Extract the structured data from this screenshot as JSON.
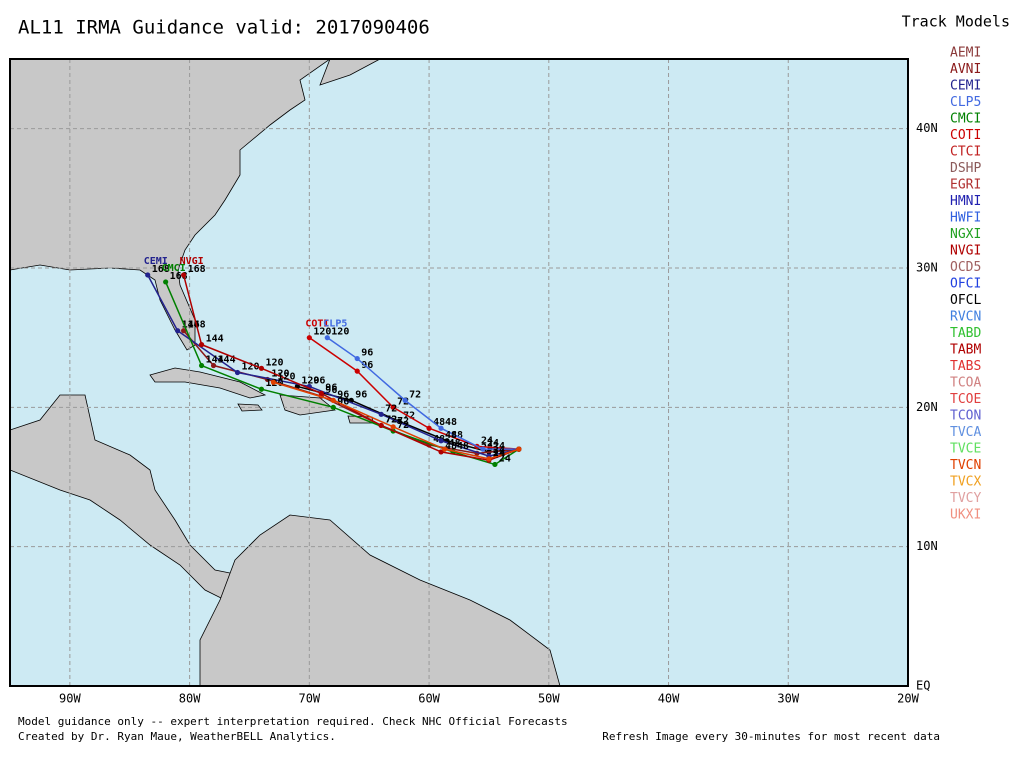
{
  "header": {
    "title": "AL11 IRMA Guidance valid: 2017090406"
  },
  "legend": {
    "title": "Track Models",
    "items": [
      {
        "name": "AEMI",
        "color": "#8b3a3a"
      },
      {
        "name": "AVNI",
        "color": "#8b1a1a"
      },
      {
        "name": "CEMI",
        "color": "#23238e"
      },
      {
        "name": "CLP5",
        "color": "#4169e1"
      },
      {
        "name": "CMCI",
        "color": "#008000"
      },
      {
        "name": "COTI",
        "color": "#cc0000"
      },
      {
        "name": "CTCI",
        "color": "#c02020"
      },
      {
        "name": "DSHP",
        "color": "#8b5a5a"
      },
      {
        "name": "EGRI",
        "color": "#b03030"
      },
      {
        "name": "HMNI",
        "color": "#2020b0"
      },
      {
        "name": "HWFI",
        "color": "#3060e0"
      },
      {
        "name": "NGXI",
        "color": "#20a020"
      },
      {
        "name": "NVGI",
        "color": "#b00000"
      },
      {
        "name": "OCD5",
        "color": "#a06060"
      },
      {
        "name": "OFCI",
        "color": "#2040e0"
      },
      {
        "name": "OFCL",
        "color": "#000000"
      },
      {
        "name": "RVCN",
        "color": "#4080e0"
      },
      {
        "name": "TABD",
        "color": "#30c030"
      },
      {
        "name": "TABM",
        "color": "#b00000"
      },
      {
        "name": "TABS",
        "color": "#e03030"
      },
      {
        "name": "TCOA",
        "color": "#d08080"
      },
      {
        "name": "TCOE",
        "color": "#e04040"
      },
      {
        "name": "TCON",
        "color": "#6060d0"
      },
      {
        "name": "TVCA",
        "color": "#6090e0"
      },
      {
        "name": "TVCE",
        "color": "#60e060"
      },
      {
        "name": "TVCN",
        "color": "#e04000"
      },
      {
        "name": "TVCX",
        "color": "#f0a020"
      },
      {
        "name": "TVCY",
        "color": "#e0a0a0"
      },
      {
        "name": "UKXI",
        "color": "#f09080"
      }
    ]
  },
  "map": {
    "lon_range": [
      -95,
      -20
    ],
    "lat_range": [
      0,
      45
    ],
    "lon_ticks": [
      {
        "value": -90,
        "label": "90W"
      },
      {
        "value": -80,
        "label": "80W"
      },
      {
        "value": -70,
        "label": "70W"
      },
      {
        "value": -60,
        "label": "60W"
      },
      {
        "value": -50,
        "label": "50W"
      },
      {
        "value": -40,
        "label": "40W"
      },
      {
        "value": -30,
        "label": "30W"
      },
      {
        "value": -20,
        "label": "20W"
      }
    ],
    "lat_ticks": [
      {
        "value": 0,
        "label": "EQ"
      },
      {
        "value": 10,
        "label": "10N"
      },
      {
        "value": 20,
        "label": "20N"
      },
      {
        "value": 30,
        "label": "30N"
      },
      {
        "value": 40,
        "label": "40N"
      }
    ],
    "tracks": [
      {
        "model": "OFCL",
        "color": "#000000",
        "points": [
          {
            "lon": -52.5,
            "lat": 17
          },
          {
            "lon": -55,
            "lat": 16.8,
            "label": "24"
          },
          {
            "lon": -58.5,
            "lat": 17.6,
            "label": "48"
          },
          {
            "lon": -62.5,
            "lat": 19,
            "label": "72"
          },
          {
            "lon": -66.5,
            "lat": 20.5,
            "label": "96"
          },
          {
            "lon": -71,
            "lat": 21.5,
            "label": "120"
          }
        ]
      },
      {
        "model": "AVNI",
        "color": "#8b1a1a",
        "points": [
          {
            "lon": -52.5,
            "lat": 17
          },
          {
            "lon": -56,
            "lat": 16.7,
            "label": "24"
          },
          {
            "lon": -60,
            "lat": 17.3,
            "label": "48"
          },
          {
            "lon": -64,
            "lat": 18.7,
            "label": "72"
          },
          {
            "lon": -69,
            "lat": 20.8,
            "label": "96"
          },
          {
            "lon": -73.5,
            "lat": 22,
            "label": "120"
          },
          {
            "lon": -78,
            "lat": 23,
            "label": "144"
          },
          {
            "lon": -80.5,
            "lat": 25.5,
            "label": "168"
          }
        ]
      },
      {
        "model": "COTI",
        "color": "#cc0000",
        "end_label": "COTI",
        "points": [
          {
            "lon": -52.5,
            "lat": 17
          },
          {
            "lon": -56,
            "lat": 17.2,
            "label": "24"
          },
          {
            "lon": -60,
            "lat": 18.5,
            "label": "48"
          },
          {
            "lon": -63,
            "lat": 20,
            "label": "72"
          },
          {
            "lon": -66,
            "lat": 22.6,
            "label": "96"
          },
          {
            "lon": -70,
            "lat": 25,
            "label": "120"
          }
        ]
      },
      {
        "model": "CLP5",
        "color": "#4169e1",
        "end_label": "CLP5",
        "points": [
          {
            "lon": -52.5,
            "lat": 17
          },
          {
            "lon": -55.5,
            "lat": 17,
            "label": "24"
          },
          {
            "lon": -59,
            "lat": 18.5,
            "label": "48"
          },
          {
            "lon": -62,
            "lat": 20.5,
            "label": "72"
          },
          {
            "lon": -66,
            "lat": 23.5,
            "label": "96"
          },
          {
            "lon": -68.5,
            "lat": 25,
            "label": "120"
          }
        ]
      },
      {
        "model": "CEMI",
        "color": "#23238e",
        "end_label": "CEMI",
        "points": [
          {
            "lon": -52.5,
            "lat": 17
          },
          {
            "lon": -55,
            "lat": 16.5,
            "label": "24"
          },
          {
            "lon": -59,
            "lat": 17.6,
            "label": "48"
          },
          {
            "lon": -64,
            "lat": 19.5,
            "label": "72"
          },
          {
            "lon": -70,
            "lat": 21.5,
            "label": "96"
          },
          {
            "lon": -76,
            "lat": 22.5,
            "label": "120"
          },
          {
            "lon": -81,
            "lat": 25.5,
            "label": "144"
          },
          {
            "lon": -83.5,
            "lat": 29.5,
            "label": "168"
          }
        ]
      },
      {
        "model": "CMCI",
        "color": "#008000",
        "end_label": "CMCI",
        "points": [
          {
            "lon": -52.5,
            "lat": 17
          },
          {
            "lon": -54.5,
            "lat": 15.9,
            "label": "24"
          },
          {
            "lon": -58,
            "lat": 16.8,
            "label": "48"
          },
          {
            "lon": -63,
            "lat": 18.3,
            "label": "72"
          },
          {
            "lon": -68,
            "lat": 20,
            "label": "96"
          },
          {
            "lon": -74,
            "lat": 21.3,
            "label": "120"
          },
          {
            "lon": -79,
            "lat": 23,
            "label": "144"
          },
          {
            "lon": -82,
            "lat": 29,
            "label": "168"
          }
        ]
      },
      {
        "model": "NVGI",
        "color": "#b00000",
        "end_label": "NVGI",
        "points": [
          {
            "lon": -52.5,
            "lat": 17
          },
          {
            "lon": -55,
            "lat": 16.2,
            "label": "24"
          },
          {
            "lon": -59,
            "lat": 16.8,
            "label": "48"
          },
          {
            "lon": -64,
            "lat": 18.7,
            "label": "72"
          },
          {
            "lon": -69,
            "lat": 21,
            "label": "96"
          },
          {
            "lon": -74,
            "lat": 22.8,
            "label": "120"
          },
          {
            "lon": -79,
            "lat": 24.5,
            "label": "144"
          },
          {
            "lon": -80.5,
            "lat": 29.5,
            "label": "168"
          }
        ]
      },
      {
        "model": "TVCN",
        "color": "#e04000",
        "points": [
          {
            "lon": -52.5,
            "lat": 17
          },
          {
            "lon": -55,
            "lat": 16.3,
            "label": "24"
          },
          {
            "lon": -58.7,
            "lat": 17,
            "label": "48"
          },
          {
            "lon": -63,
            "lat": 18.6,
            "label": "72"
          },
          {
            "lon": -68,
            "lat": 20.5,
            "label": "96"
          },
          {
            "lon": -73,
            "lat": 21.8,
            "label": "120"
          }
        ]
      }
    ]
  },
  "footer": {
    "note": "Model guidance only -- expert interpretation required.  Check NHC Official Forecasts",
    "credit": "Created by Dr. Ryan Maue, WeatherBELL Analytics.",
    "refresh": "Refresh Image every 30-minutes for most recent data"
  }
}
